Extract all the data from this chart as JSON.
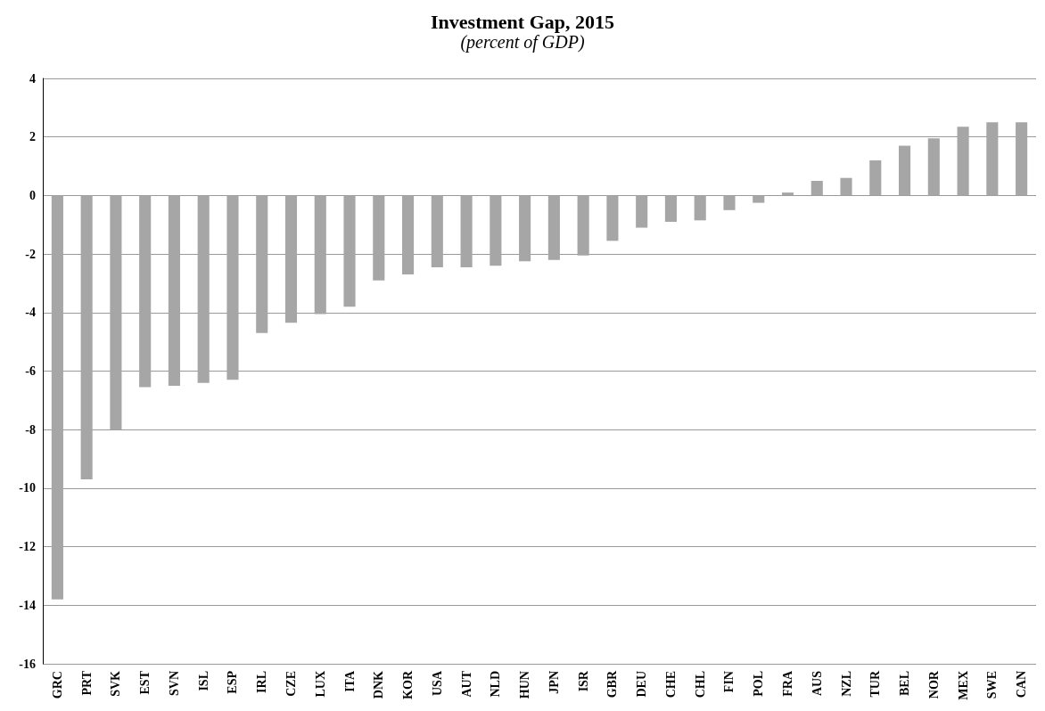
{
  "chart_data": {
    "type": "bar",
    "title": "Investment Gap, 2015",
    "subtitle": "(percent of GDP)",
    "categories": [
      "GRC",
      "PRT",
      "SVK",
      "EST",
      "SVN",
      "ISL",
      "ESP",
      "IRL",
      "CZE",
      "LUX",
      "ITA",
      "DNK",
      "KOR",
      "USA",
      "AUT",
      "NLD",
      "HUN",
      "JPN",
      "ISR",
      "GBR",
      "DEU",
      "CHE",
      "CHL",
      "FIN",
      "POL",
      "FRA",
      "AUS",
      "NZL",
      "TUR",
      "BEL",
      "NOR",
      "MEX",
      "SWE",
      "CAN"
    ],
    "values": [
      -13.8,
      -9.7,
      -8.0,
      -6.55,
      -6.5,
      -6.4,
      -6.3,
      -4.7,
      -4.35,
      -4.05,
      -3.8,
      -2.9,
      -2.7,
      -2.45,
      -2.45,
      -2.4,
      -2.25,
      -2.2,
      -2.05,
      -1.55,
      -1.1,
      -0.9,
      -0.85,
      -0.5,
      -0.25,
      0.1,
      0.5,
      0.6,
      1.2,
      1.7,
      1.95,
      2.35,
      2.5,
      2.5
    ],
    "color": "#a6a6a6",
    "ylim": [
      -16,
      4
    ],
    "yticks": [
      -16,
      -14,
      -12,
      -10,
      -8,
      -6,
      -4,
      -2,
      0,
      2,
      4
    ],
    "grid": "y"
  }
}
